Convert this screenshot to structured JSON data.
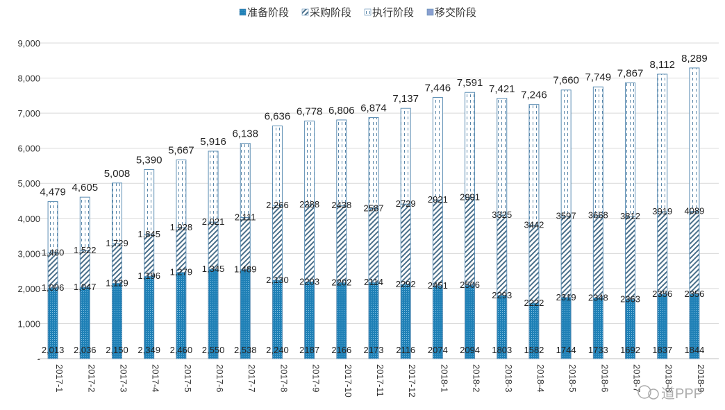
{
  "chart_data": {
    "type": "bar",
    "stacked": true,
    "categories": [
      "2017-1",
      "2017-2",
      "2017-3",
      "2017-4",
      "2017-5",
      "2017-6",
      "2017-7",
      "2017-8",
      "2017-9",
      "2017-10",
      "2017-11",
      "2017-12",
      "2018-1",
      "2018-2",
      "2018-3",
      "2018-4",
      "2018-5",
      "2018-6",
      "2018-7",
      "2018-8",
      "2018-9"
    ],
    "series": [
      {
        "name": "准备阶段",
        "values": [
          2013,
          2036,
          2150,
          2349,
          2460,
          2550,
          2538,
          2240,
          2187,
          2166,
          2173,
          2116,
          2074,
          2094,
          1803,
          1582,
          1744,
          1733,
          1692,
          1837,
          1844
        ],
        "labels": [
          "2,013",
          "2,036",
          "2,150",
          "2,349",
          "2,460",
          "2,550",
          "2,538",
          "2,240",
          "2187",
          "2166",
          "2173",
          "2116",
          "2074",
          "2094",
          "1803",
          "1582",
          "1744",
          "1733",
          "1692",
          "1837",
          "1844"
        ]
      },
      {
        "name": "采购阶段",
        "values": [
          1006,
          1047,
          1129,
          1196,
          1279,
          1345,
          1489,
          2130,
          2203,
          2202,
          2114,
          2292,
          2451,
          2506,
          2293,
          2222,
          2319,
          2348,
          2363,
          2356,
          2356
        ],
        "labels": [
          "1,006",
          "1,047",
          "1,129",
          "1,196",
          "1,279",
          "1,345",
          "1,489",
          "2,130",
          "2203",
          "2202",
          "2114",
          "2292",
          "2451",
          "2506",
          "2293",
          "2222",
          "2319",
          "2348",
          "2363",
          "2356",
          "2356"
        ]
      },
      {
        "name": "执行阶段",
        "values": [
          1460,
          1522,
          1729,
          1845,
          1928,
          2021,
          2111,
          2266,
          2388,
          2438,
          2587,
          2729,
          2921,
          2991,
          3325,
          3442,
          3597,
          3668,
          3812,
          3919,
          4089
        ],
        "labels": [
          "1,460",
          "1,522",
          "1,729",
          "1,845",
          "1,928",
          "2,021",
          "2,111",
          "2,266",
          "2388",
          "2438",
          "2587",
          "2729",
          "2921",
          "2991",
          "3325",
          "3442",
          "3597",
          "3668",
          "3812",
          "3919",
          "4089"
        ]
      },
      {
        "name": "移交阶段",
        "values": [
          0,
          0,
          0,
          0,
          0,
          0,
          0,
          0,
          0,
          0,
          0,
          0,
          0,
          0,
          0,
          0,
          0,
          0,
          0,
          0,
          0
        ]
      }
    ],
    "totals": [
      "4,479",
      "4,605",
      "5,008",
      "5,390",
      "5,667",
      "5,916",
      "6,138",
      "6,636",
      "6,778",
      "6,806",
      "6,874",
      "7,137",
      "7,446",
      "7,591",
      "7,421",
      "7,246",
      "7,660",
      "7,749",
      "7,867",
      "8,112",
      "8,289"
    ],
    "yticks": [
      "-",
      "1,000",
      "2,000",
      "3,000",
      "4,000",
      "5,000",
      "6,000",
      "7,000",
      "8,000",
      "9,000"
    ],
    "ylim": [
      0,
      9000
    ],
    "grid": true,
    "legend_position": "top",
    "colors": {
      "prep": "#1f80b6",
      "procure": "#4a6f8a",
      "exec": "#5a86a8",
      "transfer": "#8a9fd0"
    }
  },
  "watermark": "道PPP"
}
